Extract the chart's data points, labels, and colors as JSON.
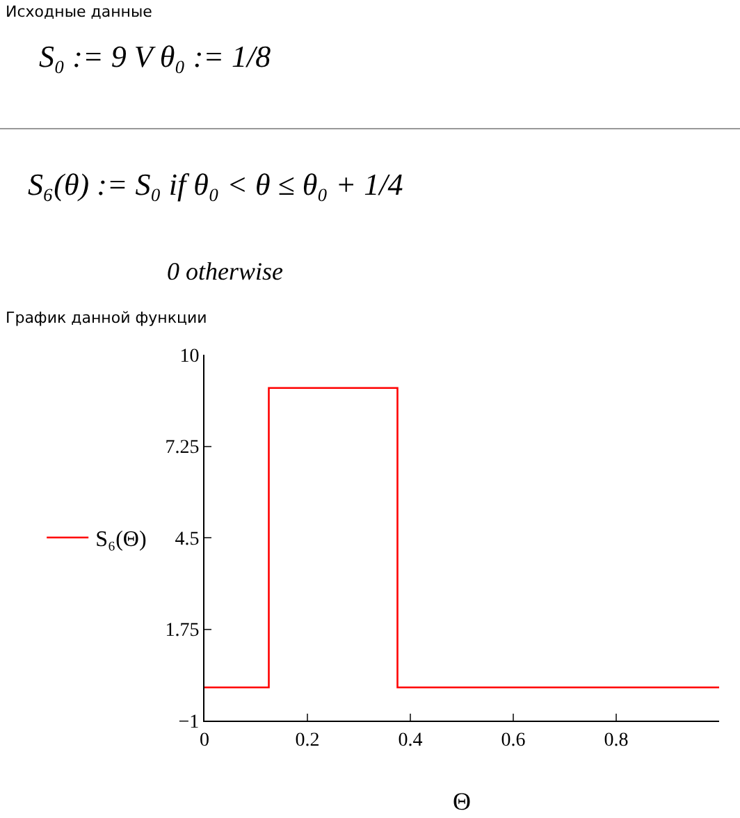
{
  "chart_data": {
    "type": "line",
    "annotations": [
      "Исходные данные",
      "S₀ := 9  V    θ₀ := 1/8",
      "S₆(θ) := S₀ if θ₀ < θ ≤ θ₀ + 1/4",
      "0 otherwise",
      "График данной функции"
    ],
    "xlabel": "Θ",
    "series": [
      {
        "name": "S₆(Θ)",
        "color": "#ff0000",
        "x": [
          0,
          0.125,
          0.125,
          0.375,
          0.375,
          1
        ],
        "values": [
          0,
          0,
          9,
          9,
          0,
          0
        ]
      }
    ],
    "xlim": [
      0,
      1
    ],
    "xticks": [
      0,
      0.2,
      0.4,
      0.6,
      0.8
    ],
    "ylim": [
      -1,
      10
    ],
    "yticks": [
      {
        "value": -1,
        "label": "−1"
      },
      1.75,
      4.5,
      7.25,
      10
    ],
    "grid": false,
    "legend": "left",
    "marker": "none",
    "line_style": "solid"
  }
}
